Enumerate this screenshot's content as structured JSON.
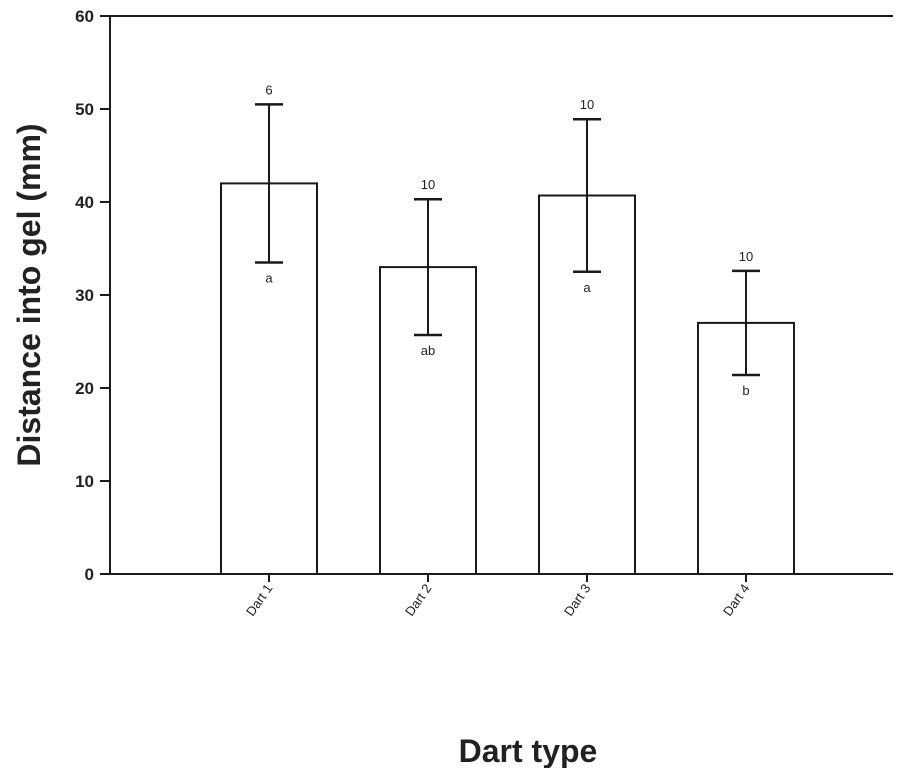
{
  "chart_data": {
    "type": "bar",
    "xlabel": "Dart type",
    "ylabel": "Distance into gel (mm)",
    "ylim": [
      0,
      60
    ],
    "yticks": [
      0,
      10,
      20,
      30,
      40,
      50,
      60
    ],
    "categories": [
      "Dart 1",
      "Dart 2",
      "Dart 3",
      "Dart 4"
    ],
    "values": [
      42,
      33,
      40.7,
      27
    ],
    "error": [
      8.5,
      7.3,
      8.2,
      5.6
    ],
    "sample_size_labels": [
      "6",
      "10",
      "10",
      "10"
    ],
    "significance_labels": [
      "a",
      "ab",
      "a",
      "b"
    ],
    "bar_fill": "#ffffff",
    "bar_stroke": "#1a1a1a",
    "grid": false,
    "legend": "none"
  }
}
